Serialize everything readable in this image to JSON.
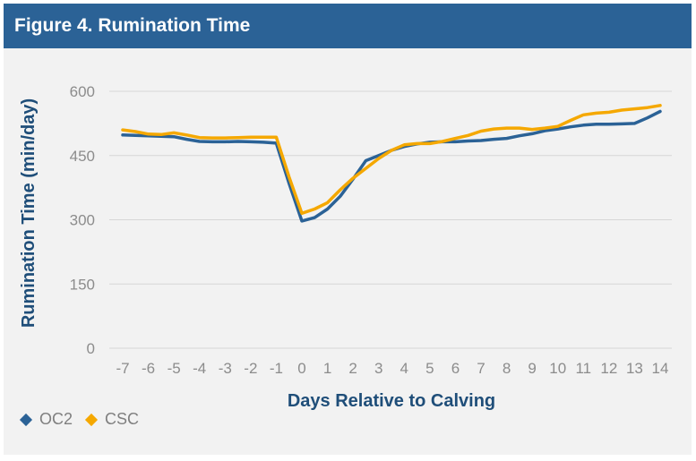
{
  "header": {
    "title": "Figure 4. Rumination Time"
  },
  "chart_data": {
    "type": "line",
    "title": "Figure 4. Rumination Time",
    "xlabel": "Days Relative to Calving",
    "ylabel": "Rumination Time (min/day)",
    "categories": [
      "-7",
      "-6",
      "-5",
      "-4",
      "-3",
      "-2",
      "-1",
      "0",
      "1",
      "2",
      "3",
      "4",
      "5",
      "6",
      "7",
      "8",
      "9",
      "10",
      "11",
      "12",
      "13",
      "14"
    ],
    "x": [
      -7,
      -6.5,
      -6,
      -5.5,
      -5,
      -4.5,
      -4,
      -3.5,
      -3,
      -2.5,
      -2,
      -1.5,
      -1,
      -0.5,
      0,
      0.5,
      1,
      1.5,
      2,
      2.5,
      3,
      3.5,
      4,
      4.5,
      5,
      5.5,
      6,
      6.5,
      7,
      7.5,
      8,
      8.5,
      9,
      9.5,
      10,
      10.5,
      11,
      11.5,
      12,
      12.5,
      13,
      13.5,
      14
    ],
    "yticks": [
      0,
      150,
      300,
      450,
      600
    ],
    "ylim": [
      0,
      600
    ],
    "grid": true,
    "legend_position": "bottom-left",
    "series": [
      {
        "name": "OC2",
        "color": "#2b6296",
        "values": [
          498,
          497,
          496,
          495,
          494,
          488,
          483,
          482,
          482,
          483,
          482,
          481,
          479,
          385,
          297,
          305,
          325,
          355,
          395,
          438,
          450,
          462,
          471,
          477,
          481,
          482,
          482,
          484,
          485,
          488,
          490,
          496,
          501,
          508,
          512,
          517,
          521,
          523,
          523,
          524,
          525,
          538,
          553
        ]
      },
      {
        "name": "CSC",
        "color": "#f5a800",
        "values": [
          510,
          506,
          500,
          499,
          503,
          498,
          492,
          491,
          491,
          492,
          493,
          493,
          493,
          400,
          315,
          325,
          340,
          370,
          397,
          420,
          443,
          462,
          475,
          478,
          478,
          483,
          490,
          497,
          507,
          512,
          514,
          514,
          511,
          514,
          518,
          532,
          545,
          549,
          551,
          556,
          559,
          562,
          567
        ]
      }
    ]
  }
}
